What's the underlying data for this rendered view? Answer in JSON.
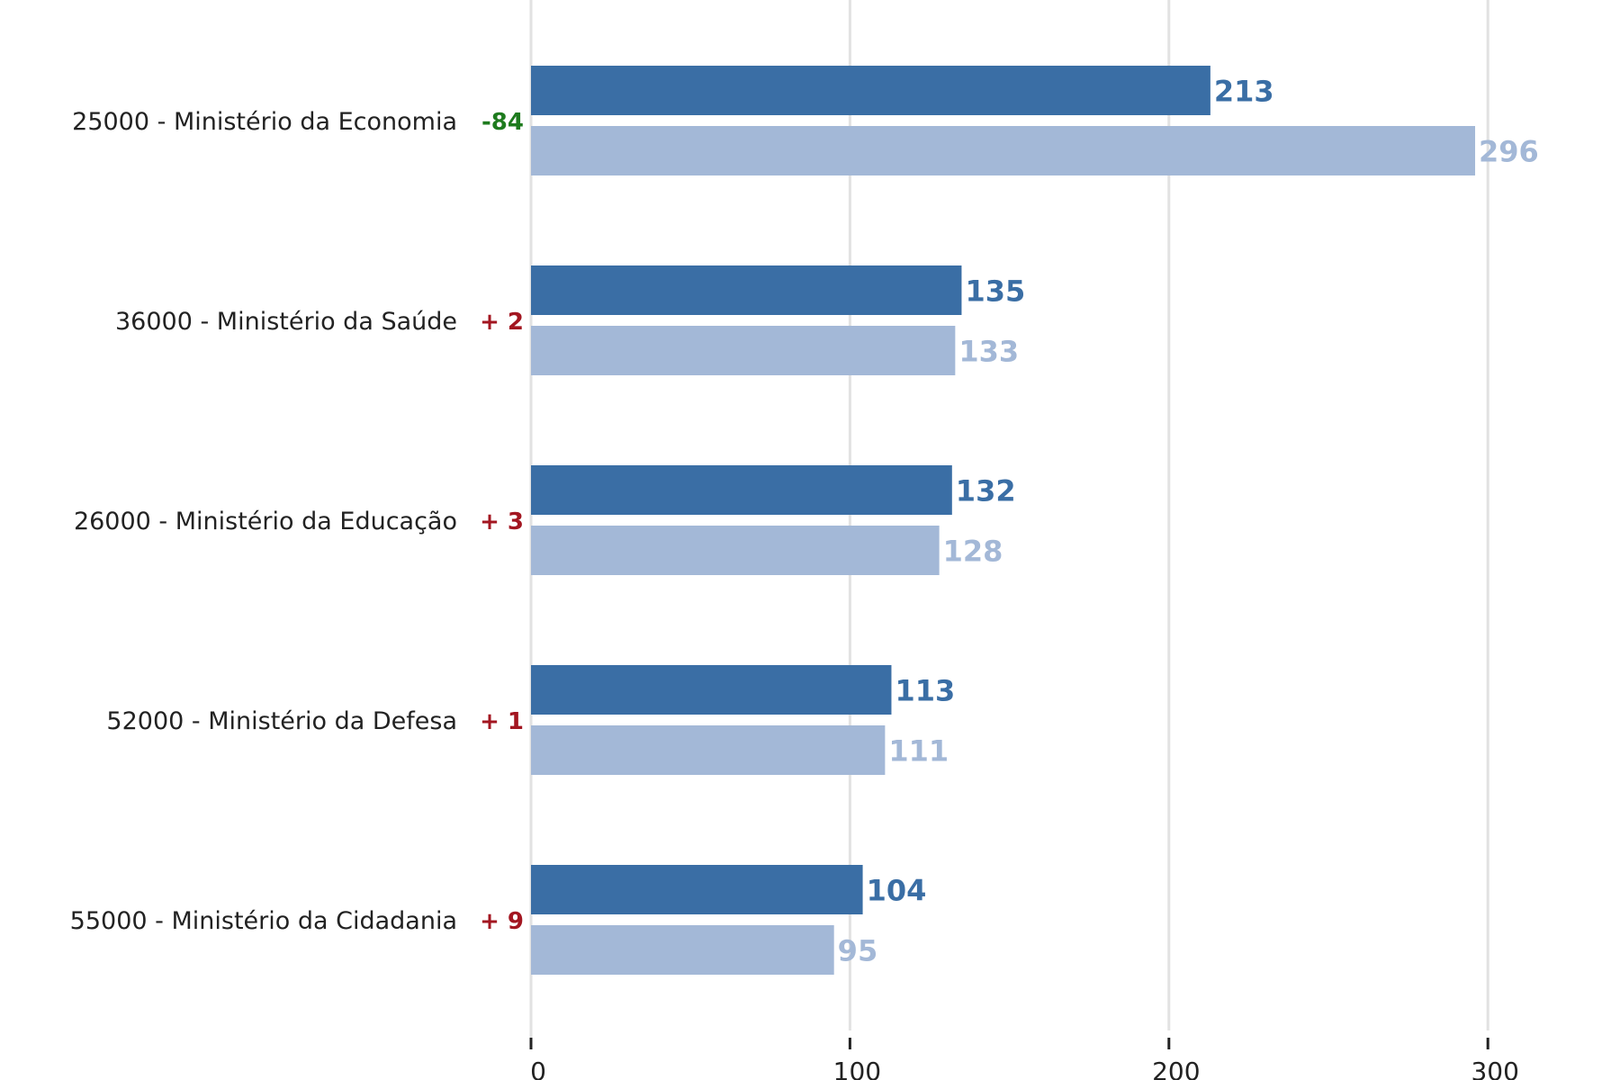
{
  "chart_data": {
    "type": "bar",
    "orientation": "horizontal",
    "categories": [
      "25000 - Ministério da Economia",
      "36000 - Ministério da Saúde",
      "26000 - Ministério da Educação",
      "52000 - Ministério da Defesa",
      "55000 - Ministério da Cidadania"
    ],
    "series": [
      {
        "values": [
          213,
          135,
          132,
          113,
          104
        ],
        "color": "#3a6ea5"
      },
      {
        "values": [
          296,
          133,
          128,
          111,
          95
        ],
        "color": "#a3b8d7"
      }
    ],
    "differences": [
      "-84",
      "+ 2",
      "+ 3",
      "+ 1",
      "+ 9"
    ],
    "difference_colors": [
      "#1e7b1e",
      "#a31621",
      "#a31621",
      "#a31621",
      "#a31621"
    ],
    "xlim": [
      0,
      330
    ],
    "xticks": [
      0,
      100,
      200,
      300
    ],
    "grid": true,
    "legend": "none",
    "title": "",
    "xlabel": "",
    "ylabel": ""
  }
}
